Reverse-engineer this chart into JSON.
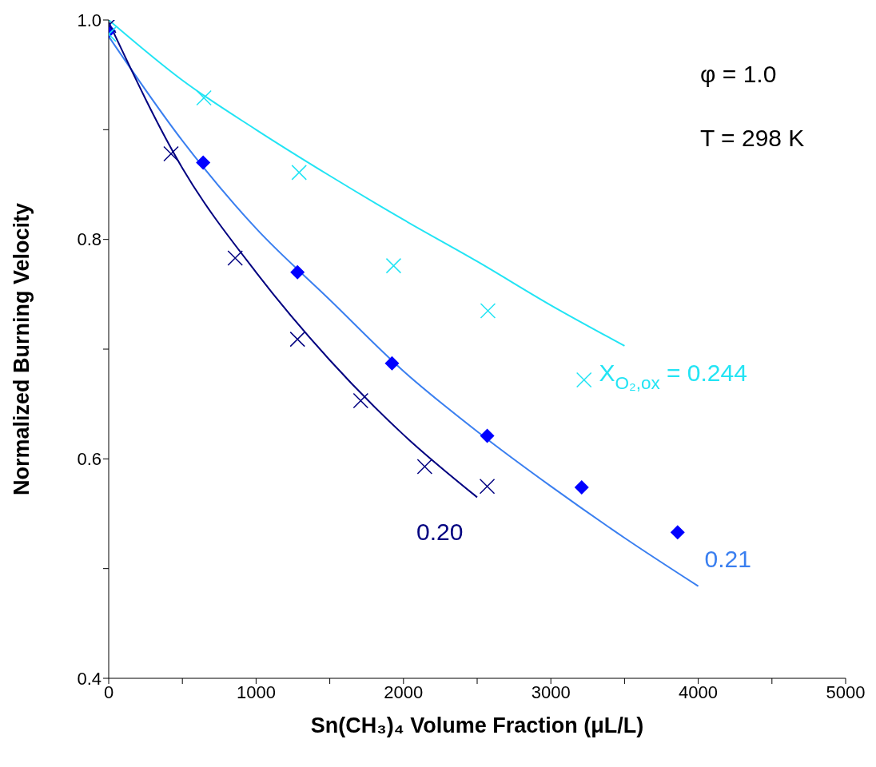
{
  "chart_data": {
    "type": "scatter",
    "xlabel": "Sn(CH₃)₄ Volume Fraction (μL/L)",
    "ylabel": "Normalized Burning Velocity",
    "xlim": [
      0,
      5000
    ],
    "xticks": [
      0,
      {
        "value": 500,
        "label": null
      },
      1000,
      {
        "value": 1500,
        "label": null
      },
      2000,
      {
        "value": 2500,
        "label": null
      },
      3000,
      {
        "value": 3500,
        "label": null
      },
      4000,
      {
        "value": 4500,
        "label": null
      },
      5000
    ],
    "ylim": [
      0.4,
      1.0
    ],
    "yticks": [
      0.4,
      {
        "value": 0.5,
        "label": null
      },
      0.6,
      {
        "value": 0.7,
        "label": null
      },
      0.8,
      {
        "value": 0.9,
        "label": null
      },
      {
        "value": 1.0,
        "label": "1.0"
      }
    ],
    "grid": false,
    "series": [
      {
        "marker": "diamond",
        "color": "#0000ff",
        "x": [
          0,
          641,
          1281,
          1922,
          2568,
          3209,
          3860
        ],
        "values": [
          0.99,
          0.87,
          0.77,
          0.687,
          0.621,
          0.574,
          0.533
        ]
      },
      {
        "marker": "cross",
        "color": "#000080",
        "x": [
          0,
          423,
          858,
          1281,
          1710,
          2144,
          2568
        ],
        "values": [
          0.995,
          0.878,
          0.783,
          0.709,
          0.653,
          0.593,
          0.575
        ]
      },
      {
        "marker": "cross",
        "color": "#22e4f4",
        "x": [
          0,
          646,
          1292,
          1933,
          2573,
          3225
        ],
        "values": [
          0.987,
          0.929,
          0.861,
          0.776,
          0.735,
          0.672
        ]
      },
      {
        "type": "line",
        "name": "X$_{O₂,ox}$ = 0.244",
        "marker": "none",
        "color": "#22e4f4",
        "x": [
          0,
          500,
          1000,
          1500,
          2000,
          2500,
          3000,
          3500
        ],
        "values": [
          1.0,
          0.945,
          0.9,
          0.858,
          0.818,
          0.78,
          0.74,
          0.703
        ]
      },
      {
        "type": "line",
        "name": "0.21",
        "marker": "none",
        "color": "#3a7ff0",
        "x": [
          0,
          500,
          1000,
          1500,
          2000,
          2500,
          3000,
          3500,
          4000
        ],
        "values": [
          0.985,
          0.89,
          0.81,
          0.745,
          0.68,
          0.625,
          0.575,
          0.528,
          0.484
        ]
      },
      {
        "type": "line",
        "name": "0.20",
        "marker": "none",
        "color": "#000080",
        "x": [
          0,
          500,
          1000,
          1500,
          2000,
          2500
        ],
        "values": [
          0.998,
          0.865,
          0.77,
          0.69,
          0.622,
          0.565
        ]
      }
    ],
    "annotations": [
      "φ = 1.0",
      "T = 298 K"
    ]
  }
}
